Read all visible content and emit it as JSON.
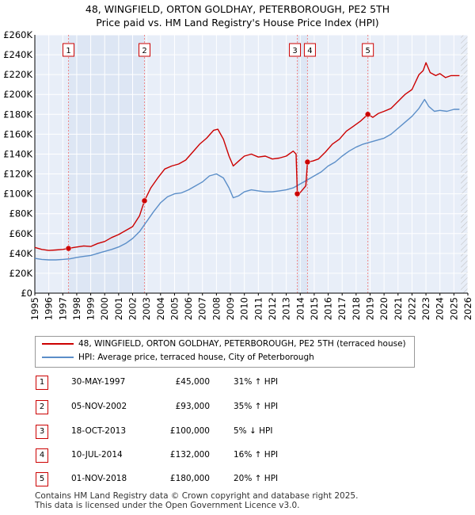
{
  "header": {
    "title_line1": "48, WINGFIELD, ORTON GOLDHAY, PETERBOROUGH, PE2 5TH",
    "title_line2": "Price paid vs. HM Land Registry's House Price Index (HPI)"
  },
  "colors": {
    "price_line": "#cc0000",
    "hpi_line": "#5b8ec8",
    "plot_background": "#e8eef8",
    "highlight_band": "#dde6f4",
    "grid": "#ffffff",
    "marker_line": "#ee8888",
    "future_hatch": "#bbbbbb"
  },
  "chart_data": {
    "type": "line",
    "title": "48, WINGFIELD, ORTON GOLDHAY, PETERBOROUGH, PE2 5TH — Price paid vs. HM Land Registry's House Price Index (HPI)",
    "xlabel": "",
    "ylabel": "",
    "xlim": [
      1995,
      2026
    ],
    "ylim": [
      0,
      260000
    ],
    "x_ticks": [
      "1995",
      "1996",
      "1997",
      "1998",
      "1999",
      "2000",
      "2001",
      "2002",
      "2003",
      "2004",
      "2005",
      "2006",
      "2007",
      "2008",
      "2009",
      "2010",
      "2011",
      "2012",
      "2013",
      "2014",
      "2015",
      "2016",
      "2017",
      "2018",
      "2019",
      "2020",
      "2021",
      "2022",
      "2023",
      "2024",
      "2025",
      "2026"
    ],
    "y_ticks": [
      {
        "value": 0,
        "label": "£0"
      },
      {
        "value": 20000,
        "label": "£20K"
      },
      {
        "value": 40000,
        "label": "£40K"
      },
      {
        "value": 60000,
        "label": "£60K"
      },
      {
        "value": 80000,
        "label": "£80K"
      },
      {
        "value": 100000,
        "label": "£100K"
      },
      {
        "value": 120000,
        "label": "£120K"
      },
      {
        "value": 140000,
        "label": "£140K"
      },
      {
        "value": 160000,
        "label": "£160K"
      },
      {
        "value": 180000,
        "label": "£180K"
      },
      {
        "value": 200000,
        "label": "£200K"
      },
      {
        "value": 220000,
        "label": "£220K"
      },
      {
        "value": 240000,
        "label": "£240K"
      },
      {
        "value": 260000,
        "label": "£260K"
      }
    ],
    "grid": true,
    "legend_position": "below",
    "series": [
      {
        "name": "48, WINGFIELD, ORTON GOLDHAY, PETERBOROUGH, PE2 5TH (terraced house)",
        "color": "#cc0000",
        "x": [
          1995.0,
          1995.5,
          1996.0,
          1996.5,
          1997.0,
          1997.41,
          1997.8,
          1998.5,
          1999.0,
          1999.5,
          2000.0,
          2000.5,
          2001.0,
          2001.5,
          2002.0,
          2002.5,
          2002.85,
          2003.3,
          2003.8,
          2004.3,
          2004.8,
          2005.3,
          2005.8,
          2006.3,
          2006.8,
          2007.3,
          2007.8,
          2008.1,
          2008.5,
          2008.9,
          2009.2,
          2009.6,
          2010.0,
          2010.5,
          2011.0,
          2011.5,
          2012.0,
          2012.5,
          2013.0,
          2013.5,
          2013.7,
          2013.79,
          2013.85,
          2014.1,
          2014.4,
          2014.52,
          2014.9,
          2015.3,
          2015.8,
          2016.3,
          2016.8,
          2017.3,
          2017.8,
          2018.3,
          2018.84,
          2019.2,
          2019.6,
          2020.0,
          2020.5,
          2021.0,
          2021.5,
          2022.0,
          2022.5,
          2022.8,
          2023.0,
          2023.3,
          2023.7,
          2024.0,
          2024.4,
          2024.8,
          2025.1,
          2025.4
        ],
        "y": [
          46000,
          44000,
          43000,
          43500,
          44000,
          45000,
          46000,
          47500,
          47000,
          50000,
          52000,
          56000,
          59000,
          63000,
          67000,
          78000,
          93000,
          106000,
          116000,
          125000,
          128000,
          130000,
          134000,
          142000,
          150000,
          156000,
          164000,
          165000,
          155000,
          138000,
          128000,
          133000,
          138000,
          140000,
          137000,
          138000,
          135000,
          136000,
          138000,
          143000,
          140000,
          100000,
          99000,
          103000,
          108000,
          132000,
          133000,
          135000,
          142000,
          150000,
          155000,
          163000,
          168000,
          173000,
          180000,
          177000,
          181000,
          183000,
          186000,
          193000,
          200000,
          205000,
          220000,
          224000,
          232000,
          222000,
          219000,
          221000,
          217000,
          219000,
          219000,
          219000
        ]
      },
      {
        "name": "HPI: Average price, terraced house, City of Peterborough",
        "color": "#5b8ec8",
        "x": [
          1995.0,
          1995.5,
          1996.0,
          1996.5,
          1997.0,
          1997.5,
          1998.0,
          1998.5,
          1999.0,
          1999.5,
          2000.0,
          2000.5,
          2001.0,
          2001.5,
          2002.0,
          2002.5,
          2003.0,
          2003.5,
          2004.0,
          2004.5,
          2005.0,
          2005.5,
          2006.0,
          2006.5,
          2007.0,
          2007.5,
          2008.0,
          2008.5,
          2008.9,
          2009.2,
          2009.6,
          2010.0,
          2010.5,
          2011.0,
          2011.5,
          2012.0,
          2012.5,
          2013.0,
          2013.5,
          2014.0,
          2014.5,
          2015.0,
          2015.5,
          2016.0,
          2016.5,
          2017.0,
          2017.5,
          2018.0,
          2018.5,
          2019.0,
          2019.5,
          2020.0,
          2020.5,
          2021.0,
          2021.5,
          2022.0,
          2022.5,
          2022.9,
          2023.2,
          2023.6,
          2024.0,
          2024.5,
          2025.0,
          2025.4
        ],
        "y": [
          35000,
          34000,
          33500,
          33500,
          34000,
          34500,
          36000,
          37000,
          38000,
          40000,
          42000,
          44000,
          46500,
          50000,
          55000,
          62000,
          72000,
          82000,
          91000,
          97000,
          100000,
          101000,
          104000,
          108000,
          112000,
          118000,
          120000,
          116000,
          106000,
          96000,
          98000,
          102000,
          104000,
          103000,
          102000,
          102000,
          103000,
          104000,
          106000,
          110000,
          114000,
          118000,
          122000,
          128000,
          132000,
          138000,
          143000,
          147000,
          150000,
          152000,
          154000,
          156000,
          160000,
          166000,
          172000,
          178000,
          186000,
          195000,
          188000,
          183000,
          184000,
          183000,
          185000,
          185000
        ]
      }
    ],
    "sales": [
      {
        "num": "1",
        "x": 1997.41,
        "y": 45000,
        "date": "30-MAY-1997",
        "price": "£45,000",
        "hpi": "31% ↑ HPI"
      },
      {
        "num": "2",
        "x": 2002.85,
        "y": 93000,
        "date": "05-NOV-2002",
        "price": "£93,000",
        "hpi": "35% ↑ HPI"
      },
      {
        "num": "3",
        "x": 2013.79,
        "y": 100000,
        "date": "18-OCT-2013",
        "price": "£100,000",
        "hpi": "5% ↓ HPI"
      },
      {
        "num": "4",
        "x": 2014.52,
        "y": 132000,
        "date": "10-JUL-2014",
        "price": "£132,000",
        "hpi": "16% ↑ HPI"
      },
      {
        "num": "5",
        "x": 2018.84,
        "y": 180000,
        "date": "01-NOV-2018",
        "price": "£180,000",
        "hpi": "20% ↑ HPI"
      }
    ],
    "highlight_bands": [
      [
        1997.41,
        2002.85
      ],
      [
        2013.79,
        2014.52
      ]
    ],
    "future_from": 2025.5
  },
  "legend": {
    "items": [
      {
        "label": "48, WINGFIELD, ORTON GOLDHAY, PETERBOROUGH, PE2 5TH (terraced house)"
      },
      {
        "label": "HPI: Average price, terraced house, City of Peterborough"
      }
    ]
  },
  "footer": {
    "line1": "Contains HM Land Registry data © Crown copyright and database right 2025.",
    "line2": "This data is licensed under the Open Government Licence v3.0."
  }
}
